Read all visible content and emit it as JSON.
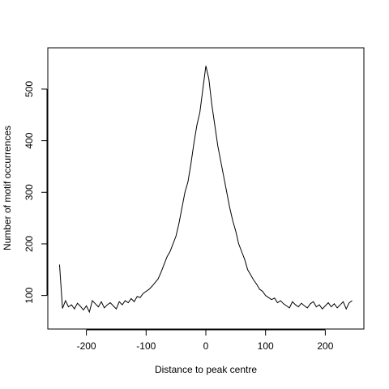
{
  "chart_data": {
    "type": "line",
    "xlabel": "Distance to peak centre",
    "ylabel": "Number of motif occurrences",
    "x": [
      -245,
      -240,
      -235,
      -230,
      -225,
      -220,
      -215,
      -210,
      -205,
      -200,
      -195,
      -190,
      -185,
      -180,
      -175,
      -170,
      -165,
      -160,
      -155,
      -150,
      -145,
      -140,
      -135,
      -130,
      -125,
      -120,
      -115,
      -110,
      -105,
      -100,
      -95,
      -90,
      -85,
      -80,
      -75,
      -70,
      -65,
      -60,
      -55,
      -50,
      -45,
      -40,
      -35,
      -30,
      -25,
      -20,
      -15,
      -10,
      -5,
      0,
      5,
      10,
      15,
      20,
      25,
      30,
      35,
      40,
      45,
      50,
      55,
      60,
      65,
      70,
      75,
      80,
      85,
      90,
      95,
      100,
      105,
      110,
      115,
      120,
      125,
      130,
      135,
      140,
      145,
      150,
      155,
      160,
      165,
      170,
      175,
      180,
      185,
      190,
      195,
      200,
      205,
      210,
      215,
      220,
      225,
      230,
      235,
      240,
      245
    ],
    "series": [
      {
        "color": "#000000",
        "values": [
          160,
          75,
          90,
          78,
          82,
          74,
          85,
          79,
          72,
          80,
          68,
          90,
          84,
          78,
          88,
          76,
          82,
          86,
          80,
          74,
          88,
          82,
          90,
          86,
          94,
          88,
          98,
          96,
          104,
          108,
          112,
          118,
          125,
          132,
          145,
          160,
          175,
          185,
          200,
          215,
          240,
          270,
          300,
          320,
          355,
          395,
          430,
          455,
          500,
          545,
          520,
          470,
          430,
          390,
          360,
          330,
          300,
          270,
          245,
          225,
          200,
          185,
          170,
          150,
          140,
          130,
          122,
          112,
          108,
          100,
          96,
          92,
          95,
          86,
          90,
          84,
          80,
          76,
          88,
          82,
          78,
          85,
          80,
          76,
          84,
          88,
          78,
          82,
          74,
          80,
          86,
          78,
          84,
          76,
          82,
          88,
          74,
          86,
          90
        ]
      }
    ],
    "xlim": [
      -264.6,
      264.6
    ],
    "xticks": [
      -200,
      -100,
      0,
      100,
      200
    ],
    "ylim": [
      35,
      580
    ],
    "yticks": [
      100,
      200,
      300,
      400,
      500
    ]
  }
}
